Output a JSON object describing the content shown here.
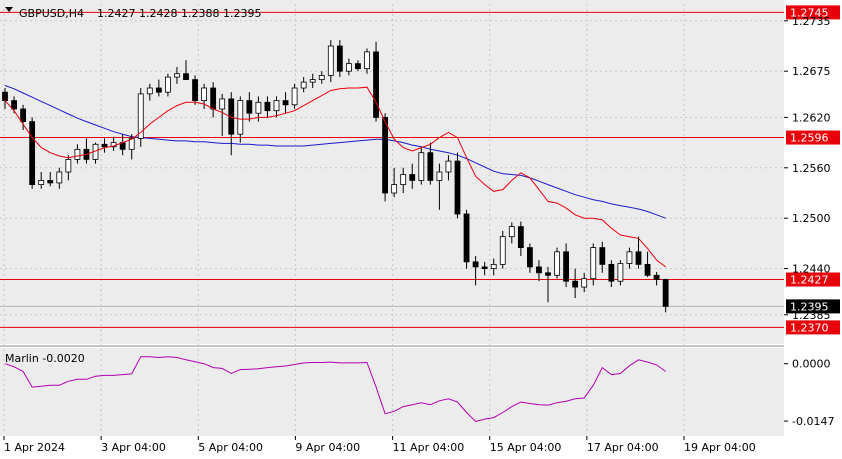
{
  "header": {
    "symbol": "GBPUSD,H4",
    "ohlc": "1.2427 1.2428 1.2388 1.2395"
  },
  "indicator": {
    "name": "Marlin -0.0020"
  },
  "colors": {
    "bull_body": "#ffffff",
    "bear_body": "#000000",
    "ma_fast": "#e8000b",
    "ma_slow": "#1a1acc",
    "osc": "#b000b0",
    "hline": "#e8000b",
    "plot_bg": "#ececec",
    "grid": "#c8c8c8"
  },
  "chart_data": [
    {
      "type": "candlestick",
      "title": "GBPUSD,H4",
      "ylim": [
        1.2355,
        1.2755
      ],
      "price_ticks": [
        "1.2735",
        "1.2675",
        "1.2620",
        "1.2560",
        "1.2500",
        "1.2440",
        "1.2385"
      ],
      "x_ticks": [
        "1 Apr 2024",
        "3 Apr 04:00",
        "5 Apr 04:00",
        "9 Apr 04:00",
        "11 Apr 04:00",
        "15 Apr 04:00",
        "17 Apr 04:00",
        "19 Apr 04:00"
      ],
      "levels": [
        {
          "value": 1.2745,
          "label": "1.2745"
        },
        {
          "value": 1.2596,
          "label": "1.2596"
        },
        {
          "value": 1.2427,
          "label": "1.2427"
        },
        {
          "value": 1.237,
          "label": "1.2370"
        }
      ],
      "current_price": {
        "value": 1.2395,
        "label": "1.2395"
      },
      "candles": [
        [
          1.265,
          1.2655,
          1.263,
          1.264
        ],
        [
          1.264,
          1.2645,
          1.2625,
          1.263
        ],
        [
          1.263,
          1.2635,
          1.2605,
          1.2615
        ],
        [
          1.2615,
          1.262,
          1.2535,
          1.254
        ],
        [
          1.254,
          1.2555,
          1.2535,
          1.2545
        ],
        [
          1.2545,
          1.2555,
          1.2538,
          1.2542
        ],
        [
          1.2542,
          1.256,
          1.2535,
          1.2555
        ],
        [
          1.2555,
          1.2575,
          1.2545,
          1.257
        ],
        [
          1.257,
          1.2588,
          1.2565,
          1.2582
        ],
        [
          1.2582,
          1.2595,
          1.2565,
          1.257
        ],
        [
          1.257,
          1.259,
          1.2565,
          1.2588
        ],
        [
          1.2588,
          1.2595,
          1.2578,
          1.2585
        ],
        [
          1.2585,
          1.2597,
          1.258,
          1.259
        ],
        [
          1.259,
          1.26,
          1.2575,
          1.2582
        ],
        [
          1.2582,
          1.26,
          1.257,
          1.2595
        ],
        [
          1.2595,
          1.2655,
          1.2585,
          1.2648
        ],
        [
          1.2648,
          1.266,
          1.264,
          1.2655
        ],
        [
          1.2655,
          1.2665,
          1.2645,
          1.265
        ],
        [
          1.265,
          1.2672,
          1.2645,
          1.2668
        ],
        [
          1.2668,
          1.268,
          1.266,
          1.2672
        ],
        [
          1.2672,
          1.2688,
          1.2665,
          1.2665
        ],
        [
          1.2665,
          1.267,
          1.2635,
          1.264
        ],
        [
          1.264,
          1.266,
          1.263,
          1.2655
        ],
        [
          1.2655,
          1.2662,
          1.262,
          1.263
        ],
        [
          1.263,
          1.2648,
          1.2598,
          1.2642
        ],
        [
          1.2642,
          1.265,
          1.2575,
          1.26
        ],
        [
          1.26,
          1.2645,
          1.259,
          1.264
        ],
        [
          1.264,
          1.265,
          1.2615,
          1.2625
        ],
        [
          1.2625,
          1.2645,
          1.2615,
          1.2638
        ],
        [
          1.2638,
          1.2645,
          1.262,
          1.2628
        ],
        [
          1.2628,
          1.2645,
          1.262,
          1.264
        ],
        [
          1.264,
          1.265,
          1.2625,
          1.2635
        ],
        [
          1.2635,
          1.266,
          1.263,
          1.2655
        ],
        [
          1.2655,
          1.2668,
          1.265,
          1.2662
        ],
        [
          1.2662,
          1.2672,
          1.2655,
          1.2665
        ],
        [
          1.2665,
          1.2675,
          1.266,
          1.267
        ],
        [
          1.267,
          1.2712,
          1.2662,
          1.2705
        ],
        [
          1.2705,
          1.2712,
          1.2668,
          1.2675
        ],
        [
          1.2675,
          1.269,
          1.267,
          1.2684
        ],
        [
          1.2684,
          1.2688,
          1.2675,
          1.2678
        ],
        [
          1.2678,
          1.2702,
          1.2672,
          1.2698
        ],
        [
          1.2698,
          1.271,
          1.2615,
          1.262
        ],
        [
          1.262,
          1.2625,
          1.252,
          1.253
        ],
        [
          1.253,
          1.256,
          1.2525,
          1.254
        ],
        [
          1.254,
          1.256,
          1.253,
          1.2552
        ],
        [
          1.2552,
          1.2565,
          1.2535,
          1.2545
        ],
        [
          1.2545,
          1.2585,
          1.254,
          1.2578
        ],
        [
          1.2578,
          1.259,
          1.254,
          1.2545
        ],
        [
          1.2545,
          1.2565,
          1.251,
          1.2555
        ],
        [
          1.2555,
          1.2575,
          1.2545,
          1.2568
        ],
        [
          1.2568,
          1.2578,
          1.25,
          1.2505
        ],
        [
          1.2505,
          1.251,
          1.244,
          1.2448
        ],
        [
          1.2448,
          1.2455,
          1.242,
          1.2442
        ],
        [
          1.2442,
          1.2448,
          1.2432,
          1.244
        ],
        [
          1.244,
          1.2452,
          1.2432,
          1.2445
        ],
        [
          1.2445,
          1.2485,
          1.244,
          1.2478
        ],
        [
          1.2478,
          1.2495,
          1.247,
          1.249
        ],
        [
          1.249,
          1.2496,
          1.2455,
          1.2465
        ],
        [
          1.2465,
          1.247,
          1.2435,
          1.2442
        ],
        [
          1.2442,
          1.245,
          1.2425,
          1.2435
        ],
        [
          1.2435,
          1.2442,
          1.24,
          1.2432
        ],
        [
          1.2432,
          1.2465,
          1.2428,
          1.246
        ],
        [
          1.246,
          1.247,
          1.2418,
          1.2425
        ],
        [
          1.2425,
          1.244,
          1.2405,
          1.2418
        ],
        [
          1.2418,
          1.2435,
          1.2412,
          1.2428
        ],
        [
          1.2428,
          1.247,
          1.242,
          1.2465
        ],
        [
          1.2465,
          1.2472,
          1.2435,
          1.2445
        ],
        [
          1.2445,
          1.245,
          1.2418,
          1.2425
        ],
        [
          1.2425,
          1.245,
          1.242,
          1.2446
        ],
        [
          1.2446,
          1.2465,
          1.244,
          1.246
        ],
        [
          1.246,
          1.2478,
          1.244,
          1.2445
        ],
        [
          1.2445,
          1.246,
          1.243,
          1.2432
        ],
        [
          1.2432,
          1.2436,
          1.242,
          1.2427
        ],
        [
          1.2427,
          1.2428,
          1.2388,
          1.2395
        ]
      ],
      "ma_fast": [
        1.264,
        1.2628,
        1.2612,
        1.2596,
        1.2584,
        1.2578,
        1.2574,
        1.2572,
        1.2574,
        1.2576,
        1.258,
        1.2584,
        1.2586,
        1.259,
        1.2594,
        1.2602,
        1.2612,
        1.262,
        1.2628,
        1.2634,
        1.2638,
        1.2638,
        1.2636,
        1.263,
        1.2626,
        1.262,
        1.2618,
        1.2618,
        1.262,
        1.262,
        1.2622,
        1.2625,
        1.2628,
        1.2634,
        1.264,
        1.2646,
        1.2652,
        1.2654,
        1.2655,
        1.2655,
        1.2656,
        1.2638,
        1.2615,
        1.2594,
        1.2584,
        1.258,
        1.2584,
        1.2588,
        1.2596,
        1.2602,
        1.2596,
        1.2572,
        1.255,
        1.254,
        1.2532,
        1.2534,
        1.2545,
        1.2554,
        1.2548,
        1.2534,
        1.252,
        1.2518,
        1.2512,
        1.2504,
        1.25,
        1.25,
        1.2498,
        1.2488,
        1.248,
        1.2478,
        1.2476,
        1.2464,
        1.245,
        1.2442
      ],
      "ma_slow": [
        1.2658,
        1.2654,
        1.2649,
        1.2644,
        1.2639,
        1.2634,
        1.2629,
        1.2624,
        1.2619,
        1.2615,
        1.2611,
        1.2607,
        1.2603,
        1.26,
        1.2597,
        1.2596,
        1.2595,
        1.2594,
        1.2593,
        1.2592,
        1.2592,
        1.2591,
        1.2591,
        1.259,
        1.2589,
        1.2589,
        1.2588,
        1.2588,
        1.2587,
        1.2587,
        1.2586,
        1.2586,
        1.2586,
        1.2586,
        1.2587,
        1.2588,
        1.2589,
        1.259,
        1.2591,
        1.2592,
        1.2593,
        1.2594,
        1.2594,
        1.2592,
        1.259,
        1.2587,
        1.2585,
        1.2582,
        1.258,
        1.2578,
        1.2575,
        1.2571,
        1.2566,
        1.2561,
        1.2556,
        1.2553,
        1.2552,
        1.2551,
        1.2548,
        1.2544,
        1.254,
        1.2536,
        1.2532,
        1.2528,
        1.2525,
        1.2522,
        1.252,
        1.2517,
        1.2515,
        1.2513,
        1.2511,
        1.2508,
        1.2504,
        1.25
      ],
      "ma_slow_start": 0
    },
    {
      "type": "line",
      "title": "Marlin -0.0020",
      "ylim": [
        -0.0175,
        0.003
      ],
      "ticks": [
        "0.0000",
        "-0.0147"
      ],
      "values": [
        0.0,
        -0.0008,
        -0.002,
        -0.006,
        -0.0058,
        -0.0055,
        -0.0055,
        -0.0045,
        -0.004,
        -0.004,
        -0.0032,
        -0.003,
        -0.003,
        -0.0028,
        -0.0026,
        0.0018,
        0.0018,
        0.0016,
        0.0018,
        0.0016,
        0.001,
        0.0005,
        0.0,
        -0.001,
        -0.0012,
        -0.0025,
        -0.0015,
        -0.0014,
        -0.0013,
        -0.001,
        -0.0008,
        -0.0006,
        -0.0002,
        0.0002,
        0.0003,
        0.0003,
        0.0004,
        0.0002,
        0.0002,
        0.0002,
        0.0003,
        -0.006,
        -0.0128,
        -0.0122,
        -0.011,
        -0.0105,
        -0.01,
        -0.0105,
        -0.0095,
        -0.009,
        -0.0098,
        -0.0125,
        -0.0148,
        -0.0142,
        -0.0138,
        -0.0125,
        -0.011,
        -0.0098,
        -0.0102,
        -0.0105,
        -0.0106,
        -0.01,
        -0.0096,
        -0.009,
        -0.0088,
        -0.0055,
        -0.001,
        -0.0028,
        -0.0025,
        -0.0005,
        0.001,
        0.0004,
        -0.0003,
        -0.002
      ]
    }
  ]
}
